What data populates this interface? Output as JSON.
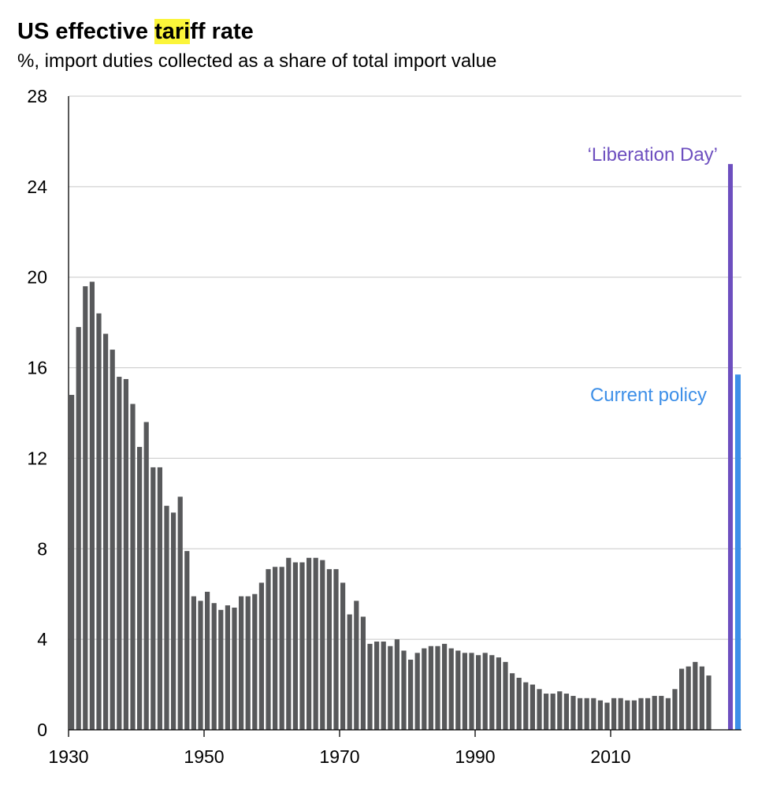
{
  "title": {
    "before": "US effective ",
    "highlight": "tari",
    "after": "ff rate",
    "highlight_color": "#fbf53a"
  },
  "subtitle": "%, import duties collected as a share of total import value",
  "chart_data": {
    "type": "bar",
    "title": "US effective tariff rate",
    "subtitle": "%, import duties collected as a share of total import value",
    "xlabel": "",
    "ylabel": "",
    "ylim": [
      0,
      28
    ],
    "yticks": [
      0,
      4,
      8,
      12,
      16,
      20,
      24,
      28
    ],
    "xticks": [
      1930,
      1950,
      1970,
      1990,
      2010
    ],
    "grid": true,
    "x": [
      1930,
      1931,
      1932,
      1933,
      1934,
      1935,
      1936,
      1937,
      1938,
      1939,
      1940,
      1941,
      1942,
      1943,
      1944,
      1945,
      1946,
      1947,
      1948,
      1949,
      1950,
      1951,
      1952,
      1953,
      1954,
      1955,
      1956,
      1957,
      1958,
      1959,
      1960,
      1961,
      1962,
      1963,
      1964,
      1965,
      1966,
      1967,
      1968,
      1969,
      1970,
      1971,
      1972,
      1973,
      1974,
      1975,
      1976,
      1977,
      1978,
      1979,
      1980,
      1981,
      1982,
      1983,
      1984,
      1985,
      1986,
      1987,
      1988,
      1989,
      1990,
      1991,
      1992,
      1993,
      1994,
      1995,
      1996,
      1997,
      1998,
      1999,
      2000,
      2001,
      2002,
      2003,
      2004,
      2005,
      2006,
      2007,
      2008,
      2009,
      2010,
      2011,
      2012,
      2013,
      2014,
      2015,
      2016,
      2017,
      2018,
      2019,
      2020,
      2021,
      2022,
      2023,
      2024
    ],
    "values": [
      14.8,
      17.8,
      19.6,
      19.8,
      18.4,
      17.5,
      16.8,
      15.6,
      15.5,
      14.4,
      12.5,
      13.6,
      11.6,
      11.6,
      9.9,
      9.6,
      10.3,
      7.9,
      5.9,
      5.7,
      6.1,
      5.6,
      5.3,
      5.5,
      5.4,
      5.9,
      5.9,
      6.0,
      6.5,
      7.1,
      7.2,
      7.2,
      7.6,
      7.4,
      7.4,
      7.6,
      7.6,
      7.5,
      7.1,
      7.1,
      6.5,
      5.1,
      5.7,
      5.0,
      3.8,
      3.9,
      3.9,
      3.7,
      4.0,
      3.5,
      3.1,
      3.4,
      3.6,
      3.7,
      3.7,
      3.8,
      3.6,
      3.5,
      3.4,
      3.4,
      3.3,
      3.4,
      3.3,
      3.2,
      3.0,
      2.5,
      2.3,
      2.1,
      2.0,
      1.8,
      1.6,
      1.6,
      1.7,
      1.6,
      1.5,
      1.4,
      1.4,
      1.4,
      1.3,
      1.2,
      1.4,
      1.4,
      1.3,
      1.3,
      1.4,
      1.4,
      1.5,
      1.5,
      1.4,
      1.8,
      2.7,
      2.8,
      3.0,
      2.8,
      2.4
    ],
    "bar_color": "#58595b",
    "extra_bars": [
      {
        "label": "‘Liberation Day’",
        "value": 25.0,
        "color": "#6d4fbf"
      },
      {
        "label": "Current policy",
        "value": 15.7,
        "color": "#3d8fe8"
      }
    ]
  }
}
